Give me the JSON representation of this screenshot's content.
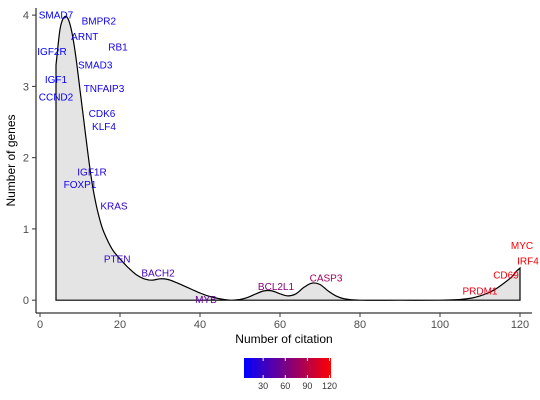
{
  "chart_data": {
    "type": "area",
    "xlabel": "Number of citation",
    "ylabel": "Number of genes",
    "xlim": [
      -1,
      123
    ],
    "ylim": [
      -0.18,
      4.1
    ],
    "x_ticks": [
      0,
      20,
      40,
      60,
      80,
      100,
      120
    ],
    "y_ticks": [
      0,
      1,
      2,
      3,
      4
    ],
    "grid": false,
    "density_curve": {
      "x": [
        4,
        5,
        6,
        7,
        8,
        9,
        10,
        11,
        12,
        13,
        14,
        15,
        16,
        18,
        20,
        22,
        24,
        26,
        28,
        30,
        32,
        34,
        36,
        38,
        40,
        42,
        44,
        46,
        48,
        50,
        52,
        54,
        56,
        58,
        60,
        62,
        64,
        66,
        68,
        70,
        72,
        74,
        76,
        80,
        90,
        100,
        105,
        108,
        110,
        112,
        114,
        116,
        118,
        119,
        120
      ],
      "y": [
        3.3,
        3.8,
        3.97,
        3.95,
        3.75,
        3.4,
        2.95,
        2.5,
        2.05,
        1.65,
        1.35,
        1.12,
        0.95,
        0.72,
        0.58,
        0.46,
        0.36,
        0.3,
        0.28,
        0.3,
        0.29,
        0.25,
        0.2,
        0.15,
        0.1,
        0.06,
        0.03,
        0.01,
        0.0,
        0.01,
        0.04,
        0.09,
        0.13,
        0.13,
        0.09,
        0.06,
        0.09,
        0.18,
        0.24,
        0.22,
        0.13,
        0.06,
        0.02,
        0.0,
        0.0,
        0.0,
        0.01,
        0.03,
        0.06,
        0.1,
        0.16,
        0.24,
        0.33,
        0.4,
        0.45
      ]
    },
    "labels": [
      {
        "text": "SMAD7",
        "x": 4,
        "y": 4.0,
        "citations": 4
      },
      {
        "text": "BMPR2",
        "x": 14.7,
        "y": 3.92,
        "citations": 10
      },
      {
        "text": "ARNT",
        "x": 11.2,
        "y": 3.7,
        "citations": 8
      },
      {
        "text": "RB1",
        "x": 19.5,
        "y": 3.55,
        "citations": 16
      },
      {
        "text": "IGF2R",
        "x": 3,
        "y": 3.49,
        "citations": 5
      },
      {
        "text": "SMAD3",
        "x": 13.8,
        "y": 3.3,
        "citations": 9
      },
      {
        "text": "IGF1",
        "x": 4,
        "y": 3.1,
        "citations": 5
      },
      {
        "text": "TNFAIP3",
        "x": 16,
        "y": 2.97,
        "citations": 14
      },
      {
        "text": "CCND2",
        "x": 4,
        "y": 2.85,
        "citations": 6
      },
      {
        "text": "CDK6",
        "x": 15.5,
        "y": 2.62,
        "citations": 13
      },
      {
        "text": "KLF4",
        "x": 16,
        "y": 2.44,
        "citations": 13
      },
      {
        "text": "IGF1R",
        "x": 13,
        "y": 1.8,
        "citations": 15
      },
      {
        "text": "FOXP1",
        "x": 10,
        "y": 1.62,
        "citations": 12
      },
      {
        "text": "KRAS",
        "x": 18.5,
        "y": 1.32,
        "citations": 22
      },
      {
        "text": "PTEN",
        "x": 19.3,
        "y": 0.58,
        "citations": 28
      },
      {
        "text": "BACH2",
        "x": 29.5,
        "y": 0.38,
        "citations": 35
      },
      {
        "text": "MYB",
        "x": 41.5,
        "y": 0.01,
        "citations": 50
      },
      {
        "text": "BCL2L1",
        "x": 59,
        "y": 0.19,
        "citations": 66
      },
      {
        "text": "CASP3",
        "x": 71.5,
        "y": 0.31,
        "citations": 78
      },
      {
        "text": "PRDM1",
        "x": 110,
        "y": 0.13,
        "citations": 112
      },
      {
        "text": "CD69",
        "x": 116.5,
        "y": 0.35,
        "citations": 117
      },
      {
        "text": "IRF4",
        "x": 122,
        "y": 0.55,
        "citations": 119
      },
      {
        "text": "MYC",
        "x": 120.5,
        "y": 0.77,
        "citations": 120
      }
    ],
    "color_scale": {
      "low_color": "#0000ff",
      "high_color": "#ff0000",
      "domain": [
        4,
        122
      ],
      "ticks": [
        30,
        60,
        90,
        120
      ],
      "position": "bottom"
    }
  }
}
